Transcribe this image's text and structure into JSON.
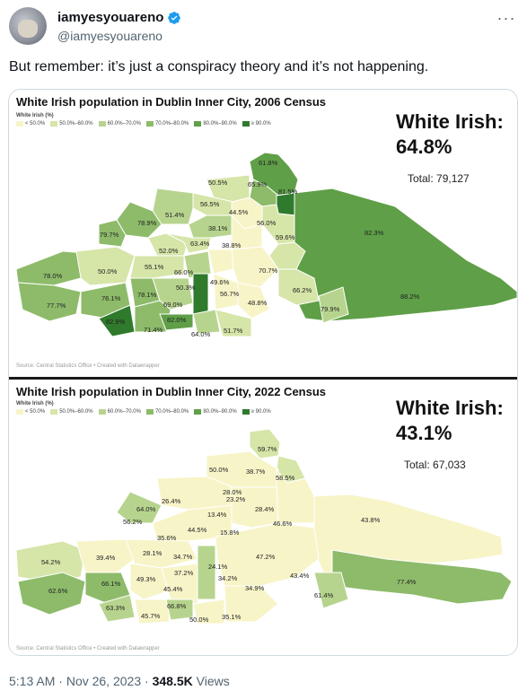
{
  "author": {
    "name": "iamyesyouareno",
    "handle": "@iamyesyouareno"
  },
  "tweet_text": "But remember: it’s just a conspiracy theory and it’s not happening.",
  "footer": {
    "time": "5:13 AM",
    "sep1": " · ",
    "date": "Nov 26, 2023",
    "sep2": " · ",
    "views": "348.5K",
    "views_label": " Views"
  },
  "legend": {
    "title": "White Irish (%)",
    "items": [
      "< 50.0%",
      "50.0%–60.0%",
      "60.0%–70.0%",
      "70.0%–80.0%",
      "80.0%–90.0%",
      "≥ 90.0%"
    ],
    "colors": [
      "#f7f4c8",
      "#d6e5a8",
      "#b7d48e",
      "#8dbb6a",
      "#5f9f48",
      "#2f7a2c"
    ]
  },
  "maps": [
    {
      "title": "White Irish population in Dublin Inner City, 2006 Census",
      "headline": "White Irish:",
      "headline_value": "64.8%",
      "total": "Total: 79,127",
      "source": "Source: Central Statistics Office • Created with Datawrapper",
      "labels": [
        "61.8%",
        "50.5%",
        "65.9%",
        "81.5%",
        "56.5%",
        "44.5%",
        "51.4%",
        "78.9%",
        "56.0%",
        "38.1%",
        "79.7%",
        "59.6%",
        "82.3%",
        "63.4%",
        "38.8%",
        "52.0%",
        "55.1%",
        "70.7%",
        "78.0%",
        "50.0%",
        "66.0%",
        "49.6%",
        "50.3%",
        "66.2%",
        "88.2%",
        "56.7%",
        "76.1%",
        "78.1%",
        "77.7%",
        "69.0%",
        "48.8%",
        "79.9%",
        "82.9%",
        "82.0%",
        "71.4%",
        "64.0%",
        "51.7%"
      ]
    },
    {
      "title": "White Irish population in Dublin Inner City, 2022 Census",
      "headline": "White Irish:",
      "headline_value": "43.1%",
      "total": "Total: 67,033",
      "source": "Source: Central Statistics Office • Created with Datawrapper",
      "labels": [
        "59.7%",
        "50.0%",
        "38.7%",
        "58.5%",
        "28.0%",
        "23.2%",
        "26.4%",
        "28.4%",
        "64.0%",
        "13.4%",
        "56.2%",
        "46.6%",
        "43.8%",
        "44.5%",
        "15.8%",
        "35.6%",
        "54.2%",
        "39.4%",
        "28.1%",
        "34.7%",
        "47.2%",
        "24.1%",
        "37.2%",
        "49.3%",
        "34.2%",
        "43.4%",
        "66.1%",
        "45.4%",
        "34.9%",
        "62.6%",
        "61.4%",
        "77.4%",
        "63.3%",
        "66.8%",
        "45.7%",
        "50.0%",
        "35.1%"
      ]
    }
  ]
}
